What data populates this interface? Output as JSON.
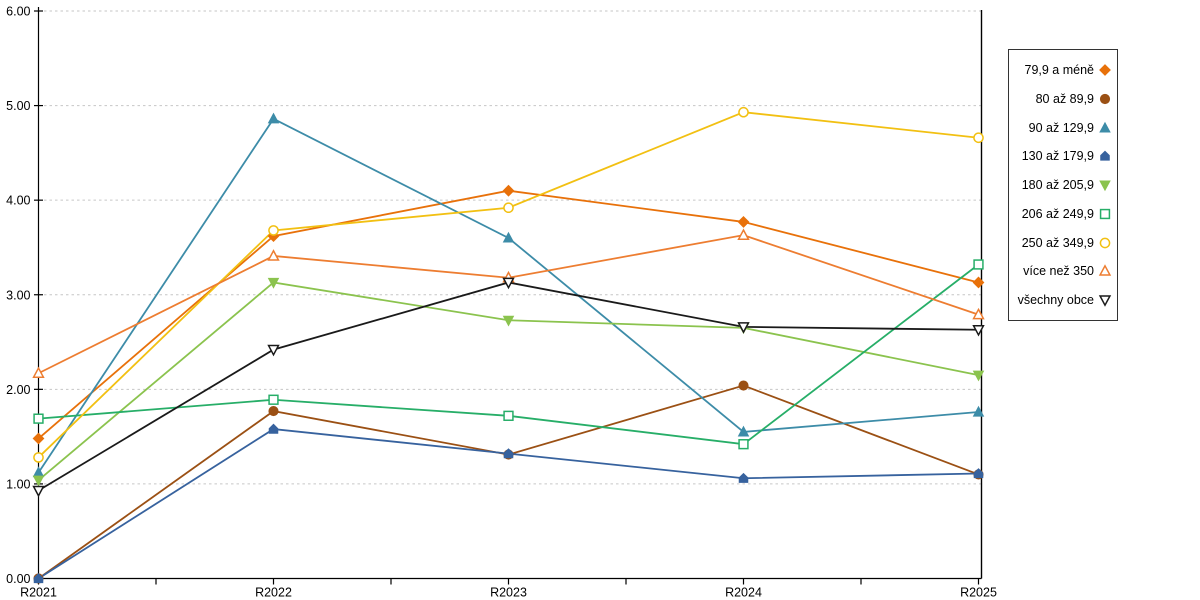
{
  "chart_data": {
    "type": "line",
    "title": "",
    "xlabel": "",
    "ylabel": "",
    "categories": [
      "R2021",
      "R2022",
      "R2023",
      "R2024",
      "R2025"
    ],
    "series": [
      {
        "name": "79,9 a méně",
        "color": "#E8710A",
        "marker": "diamond",
        "filled": true,
        "values": [
          1.48,
          3.62,
          4.1,
          3.77,
          3.13
        ]
      },
      {
        "name": "80 až 89,9",
        "color": "#9B5014",
        "marker": "circle",
        "filled": true,
        "values": [
          0.0,
          1.77,
          1.31,
          2.04,
          1.1
        ]
      },
      {
        "name": "90 až 129,9",
        "color": "#3D8CA8",
        "marker": "triangle-up",
        "filled": true,
        "values": [
          1.12,
          4.86,
          3.6,
          1.55,
          1.76
        ]
      },
      {
        "name": "130 až 179,9",
        "color": "#37629E",
        "marker": "pentagon",
        "filled": true,
        "values": [
          0.0,
          1.58,
          1.32,
          1.06,
          1.11
        ]
      },
      {
        "name": "180 až 205,9",
        "color": "#8BC34E",
        "marker": "triangle-down",
        "filled": true,
        "values": [
          1.04,
          3.13,
          2.73,
          2.65,
          2.15
        ]
      },
      {
        "name": "206 až 249,9",
        "color": "#27AE68",
        "marker": "square",
        "filled": false,
        "values": [
          1.69,
          1.89,
          1.72,
          1.42,
          3.32
        ]
      },
      {
        "name": "250 až 349,9",
        "color": "#F2C012",
        "marker": "circle",
        "filled": false,
        "values": [
          1.28,
          3.68,
          3.92,
          4.93,
          4.66
        ]
      },
      {
        "name": "více než 350",
        "color": "#ED7D31",
        "marker": "triangle-up",
        "filled": false,
        "values": [
          2.17,
          3.41,
          3.18,
          3.63,
          2.79
        ]
      },
      {
        "name": "všechny obce",
        "color": "#1A1A1A",
        "marker": "triangle-down",
        "filled": false,
        "values": [
          0.93,
          2.42,
          3.13,
          2.66,
          2.63
        ]
      }
    ],
    "ylim": [
      0,
      6
    ],
    "ytick_labels": [
      "0.00",
      "1.00",
      "2.00",
      "3.00",
      "4.00",
      "5.00",
      "6.00"
    ],
    "grid": "horizontal-dashed",
    "legend_position": "right"
  },
  "colors": {
    "background": "#FFFFFF",
    "gridline": "#C6C6C6",
    "axis": "#000000",
    "legend_border": "#333333",
    "tick_label": "#000000"
  }
}
